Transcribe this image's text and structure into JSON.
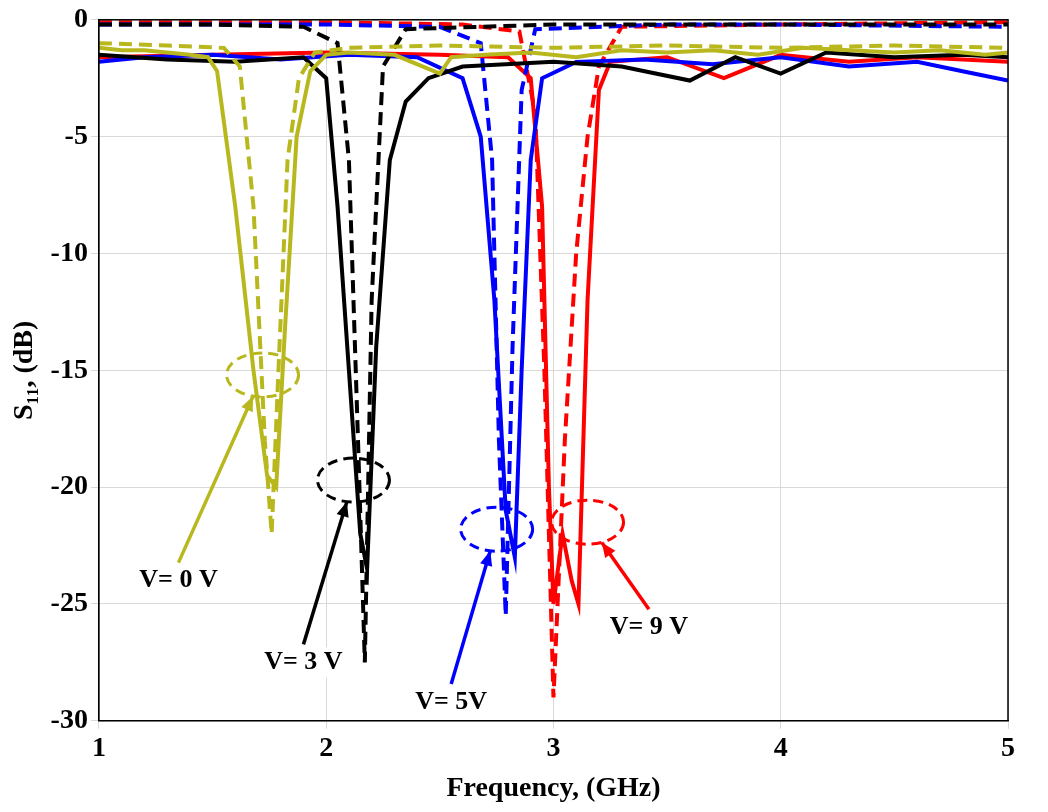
{
  "chart_data": {
    "type": "line",
    "x_label": "Frequency, (GHz)",
    "y_label": "S₁₁, (dB)",
    "xlim": [
      1,
      5
    ],
    "xticks": [
      1,
      2,
      3,
      4,
      5
    ],
    "ylim": [
      -30,
      0
    ],
    "yticks": [
      -30,
      -25,
      -20,
      -15,
      -10,
      -5,
      0
    ],
    "grid": true,
    "series": [
      {
        "color": "#b8b81e",
        "line_style": "solid",
        "x": [
          1,
          1.1,
          1.2,
          1.3,
          1.4,
          1.48,
          1.52,
          1.6,
          1.68,
          1.74,
          1.78,
          1.82,
          1.87,
          1.93,
          2.0,
          2.1,
          2.3,
          2.5,
          2.55,
          2.7,
          2.9,
          3.1,
          3.3,
          3.5,
          3.7,
          3.9,
          4.1,
          4.3,
          4.5,
          4.7,
          4.9,
          5
        ],
        "values": [
          -1.2,
          -1.3,
          -1.3,
          -1.4,
          -1.5,
          -1.6,
          -2.2,
          -8,
          -15,
          -19.5,
          -20,
          -13,
          -5,
          -2.2,
          -1.5,
          -1.4,
          -1.5,
          -2.3,
          -1.6,
          -1.5,
          -1.4,
          -1.6,
          -1.3,
          -1.4,
          -1.3,
          -1.5,
          -1.2,
          -1.3,
          -1.4,
          -1.3,
          -1.5,
          -1.4
        ]
      },
      {
        "color": "#b8b81e",
        "line_style": "dashed",
        "x": [
          1,
          1.3,
          1.55,
          1.62,
          1.68,
          1.73,
          1.76,
          1.79,
          1.83,
          1.88,
          1.95,
          2.1,
          2.5,
          3,
          3.5,
          4,
          4.5,
          5
        ],
        "values": [
          -1,
          -1.1,
          -1.2,
          -2,
          -8,
          -18,
          -22,
          -15,
          -6,
          -2.5,
          -1.4,
          -1.2,
          -1.1,
          -1.2,
          -1.1,
          -1.2,
          -1.1,
          -1.2
        ]
      },
      {
        "color": "#000000",
        "line_style": "solid",
        "x": [
          1,
          1.3,
          1.6,
          1.9,
          2.0,
          2.05,
          2.1,
          2.15,
          2.18,
          2.22,
          2.28,
          2.35,
          2.45,
          2.6,
          3,
          3.3,
          3.6,
          3.8,
          4.0,
          4.2,
          4.5,
          4.8,
          5
        ],
        "values": [
          -1.5,
          -1.7,
          -1.8,
          -1.6,
          -2.5,
          -8,
          -15,
          -22,
          -23.5,
          -14,
          -6,
          -3.5,
          -2.5,
          -2,
          -1.8,
          -2,
          -2.6,
          -1.6,
          -2.3,
          -1.4,
          -1.6,
          -1.5,
          -1.6
        ]
      },
      {
        "color": "#000000",
        "line_style": "dashed",
        "x": [
          1,
          1.5,
          1.9,
          2.05,
          2.1,
          2.14,
          2.17,
          2.2,
          2.25,
          2.35,
          3,
          4,
          5
        ],
        "values": [
          -0.2,
          -0.2,
          -0.3,
          -1,
          -6,
          -18,
          -27.5,
          -12,
          -2,
          -0.4,
          -0.2,
          -0.2,
          -0.2
        ]
      },
      {
        "color": "#0000ff",
        "line_style": "solid",
        "x": [
          1,
          1.2,
          1.5,
          1.8,
          2.1,
          2.4,
          2.6,
          2.68,
          2.74,
          2.79,
          2.83,
          2.86,
          2.9,
          2.95,
          3.1,
          3.4,
          3.7,
          4.0,
          4.3,
          4.6,
          4.8,
          5
        ],
        "values": [
          -1.8,
          -1.6,
          -1.5,
          -1.7,
          -1.5,
          -1.6,
          -2.5,
          -5,
          -12,
          -21,
          -23,
          -15,
          -6,
          -2.5,
          -1.8,
          -1.7,
          -1.9,
          -1.6,
          -2,
          -1.8,
          -2.2,
          -2.6
        ]
      },
      {
        "color": "#0000ff",
        "line_style": "dashed",
        "x": [
          1,
          2,
          2.5,
          2.68,
          2.73,
          2.76,
          2.79,
          2.82,
          2.86,
          2.92,
          3.5,
          4,
          5
        ],
        "values": [
          -0.2,
          -0.2,
          -0.3,
          -1,
          -6,
          -18,
          -25.5,
          -14,
          -3,
          -0.4,
          -0.2,
          -0.2,
          -0.3
        ]
      },
      {
        "color": "#ff0000",
        "line_style": "solid",
        "x": [
          1,
          1.5,
          2,
          2.5,
          2.8,
          2.9,
          2.95,
          2.98,
          3.0,
          3.04,
          3.08,
          3.11,
          3.15,
          3.2,
          3.25,
          3.5,
          3.75,
          4,
          4.3,
          4.6,
          5
        ],
        "values": [
          -1.6,
          -1.5,
          -1.4,
          -1.5,
          -1.6,
          -2.5,
          -8,
          -20,
          -25,
          -22,
          -24,
          -25,
          -12,
          -3,
          -1.8,
          -1.6,
          -2.5,
          -1.5,
          -1.8,
          -1.6,
          -1.8
        ]
      },
      {
        "color": "#ff0000",
        "line_style": "dashed",
        "x": [
          1,
          2,
          2.6,
          2.85,
          2.92,
          2.96,
          3.0,
          3.05,
          3.1,
          3.15,
          3.2,
          3.3,
          4,
          5
        ],
        "values": [
          -0.1,
          -0.1,
          -0.2,
          -0.5,
          -4,
          -15,
          -29,
          -18,
          -10,
          -5,
          -2,
          -0.3,
          -0.2,
          -0.1
        ]
      }
    ],
    "annotations": [
      {
        "text": "V= 0 V",
        "x": 1.35,
        "y": -24,
        "target": [
          1.72,
          -15.2
        ],
        "color": "#b8b81e"
      },
      {
        "text": "V= 3 V",
        "x": 1.9,
        "y": -27.5,
        "target": [
          2.12,
          -19.7
        ],
        "color": "#000000"
      },
      {
        "text": "V= 5V",
        "x": 2.55,
        "y": -29.2,
        "target": [
          2.75,
          -21.8
        ],
        "color": "#0000ff"
      },
      {
        "text": "V= 9 V",
        "x": 3.42,
        "y": -26,
        "target": [
          3.15,
          -21.5
        ],
        "color": "#ff0000"
      }
    ]
  }
}
